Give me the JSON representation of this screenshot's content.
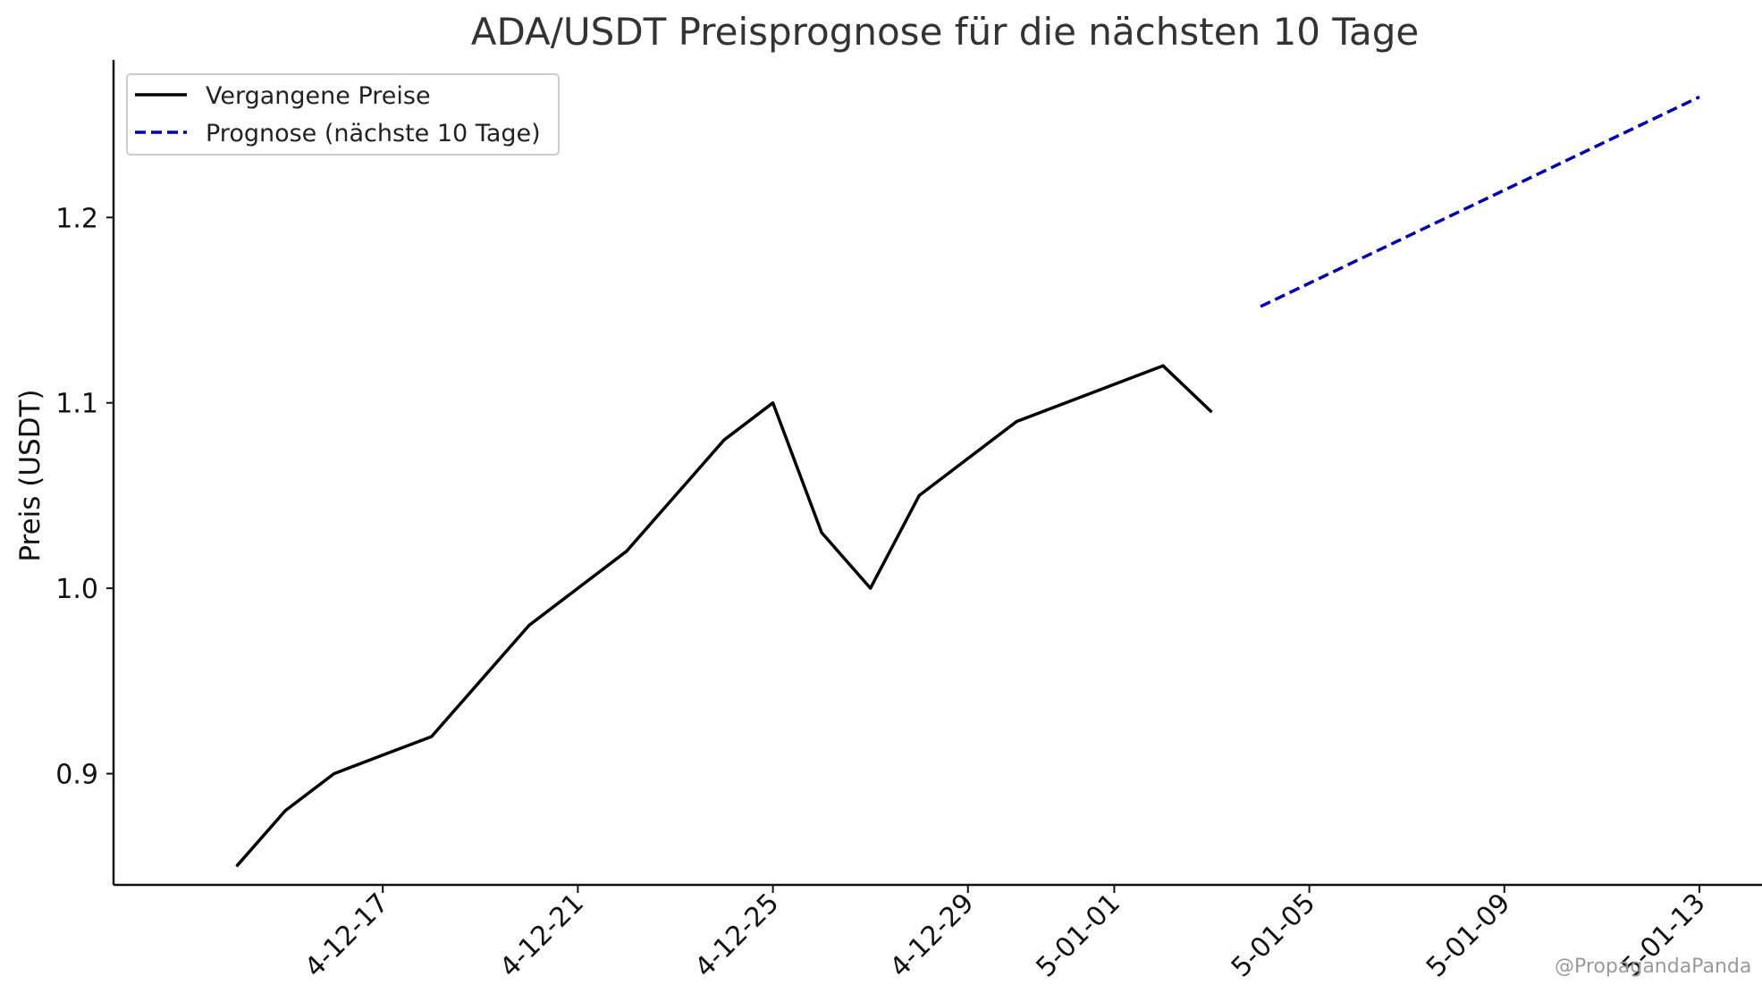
{
  "chart_data": {
    "type": "line",
    "title": "ADA/USDT Preisprognose für die nächsten 10 Tage",
    "xlabel": "",
    "ylabel": "Preis (USDT)",
    "xlim": [
      "2024-12-13",
      "2025-01-13"
    ],
    "ylim": [
      0.84,
      1.285
    ],
    "x_ticks": [
      "2024-12-17",
      "2024-12-21",
      "2024-12-25",
      "2024-12-29",
      "2025-01-01",
      "2025-01-05",
      "2025-01-09",
      "2025-01-13"
    ],
    "x_tick_labels": [
      "4-12-17",
      "4-12-21",
      "4-12-25",
      "4-12-29",
      "5-01-01",
      "5-01-05",
      "5-01-09",
      "5-01-13"
    ],
    "y_ticks": [
      0.9,
      1.0,
      1.1,
      1.2
    ],
    "y_tick_labels": [
      "0.9",
      "1.0",
      "1.1",
      "1.2"
    ],
    "grid": false,
    "legend_position": "top-left",
    "series": [
      {
        "name": "Vergangene Preise",
        "style": "solid",
        "color": "#000000",
        "x": [
          "2024-12-14",
          "2024-12-15",
          "2024-12-16",
          "2024-12-17",
          "2024-12-18",
          "2024-12-19",
          "2024-12-20",
          "2024-12-21",
          "2024-12-22",
          "2024-12-23",
          "2024-12-24",
          "2024-12-25",
          "2024-12-26",
          "2024-12-27",
          "2024-12-28",
          "2024-12-29",
          "2024-12-30",
          "2024-12-31",
          "2025-01-01",
          "2025-01-02",
          "2025-01-03"
        ],
        "values": [
          0.85,
          0.88,
          0.9,
          0.91,
          0.92,
          0.95,
          0.98,
          1.0,
          1.02,
          1.05,
          1.08,
          1.1,
          1.03,
          1.0,
          1.05,
          1.07,
          1.09,
          1.1,
          1.11,
          1.12,
          1.095
        ]
      },
      {
        "name": "Prognose (nächste 10 Tage)",
        "style": "dashed",
        "color": "#0000aa",
        "x": [
          "2025-01-04",
          "2025-01-13"
        ],
        "values": [
          1.152,
          1.265
        ]
      }
    ]
  },
  "watermark": "@PropagandaPanda"
}
